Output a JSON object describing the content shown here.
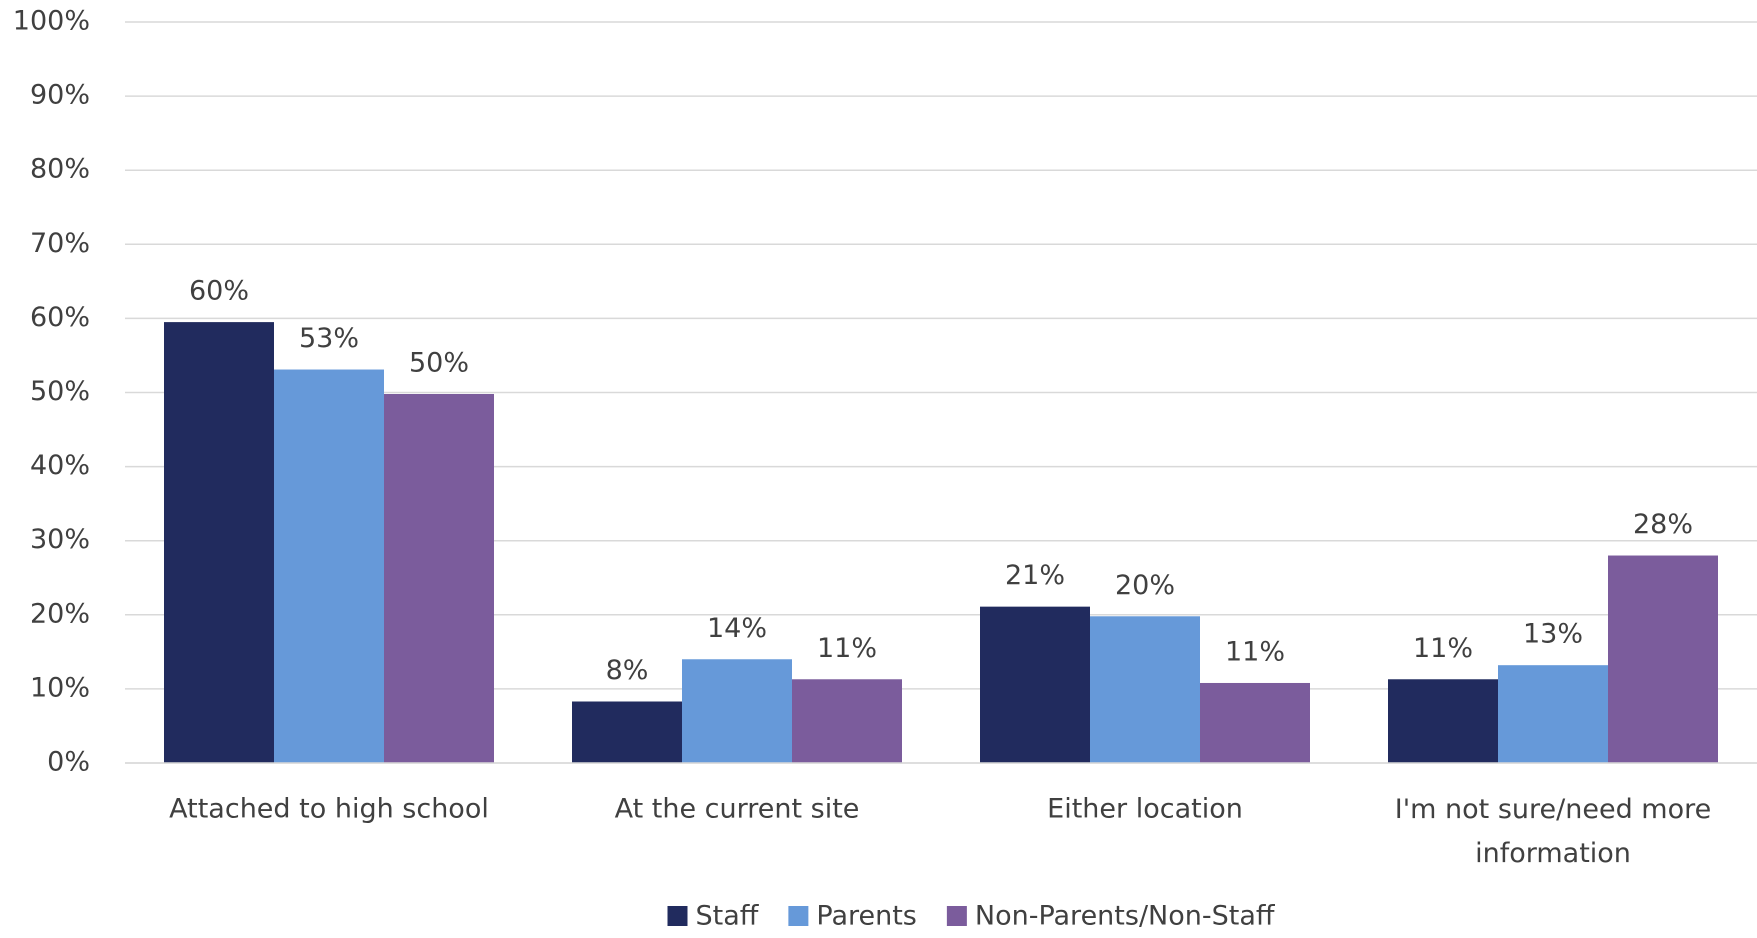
{
  "chart_data": {
    "type": "bar",
    "categories": [
      "Attached to high school",
      "At the current site",
      "Either location",
      "I'm not sure/need more information"
    ],
    "series": [
      {
        "name": "Staff",
        "color": "#212b5e",
        "values": [
          59.5,
          8.3,
          21.1,
          11.3
        ],
        "value_labels": [
          "60%",
          "8%",
          "21%",
          "11%"
        ]
      },
      {
        "name": "Parents",
        "color": "#6699d9",
        "values": [
          53.1,
          14,
          19.8,
          13.2
        ],
        "value_labels": [
          "53%",
          "14%",
          "20%",
          "13%"
        ]
      },
      {
        "name": "Non-Parents/Non-Staff",
        "color": "#7b5c9c",
        "values": [
          49.8,
          11.3,
          10.8,
          28
        ],
        "value_labels": [
          "50%",
          "11%",
          "11%",
          "28%"
        ]
      }
    ],
    "ylim": [
      0,
      100
    ],
    "yticks": [
      {
        "value": 0,
        "label": "0%"
      },
      {
        "value": 10,
        "label": "10%"
      },
      {
        "value": 20,
        "label": "20%"
      },
      {
        "value": 30,
        "label": "30%"
      },
      {
        "value": 40,
        "label": "40%"
      },
      {
        "value": 50,
        "label": "50%"
      },
      {
        "value": 60,
        "label": "60%"
      },
      {
        "value": 70,
        "label": "70%"
      },
      {
        "value": 80,
        "label": "80%"
      },
      {
        "value": 90,
        "label": "90%"
      },
      {
        "value": 100,
        "label": "100%"
      }
    ],
    "grid": true,
    "legend": "bottom"
  }
}
